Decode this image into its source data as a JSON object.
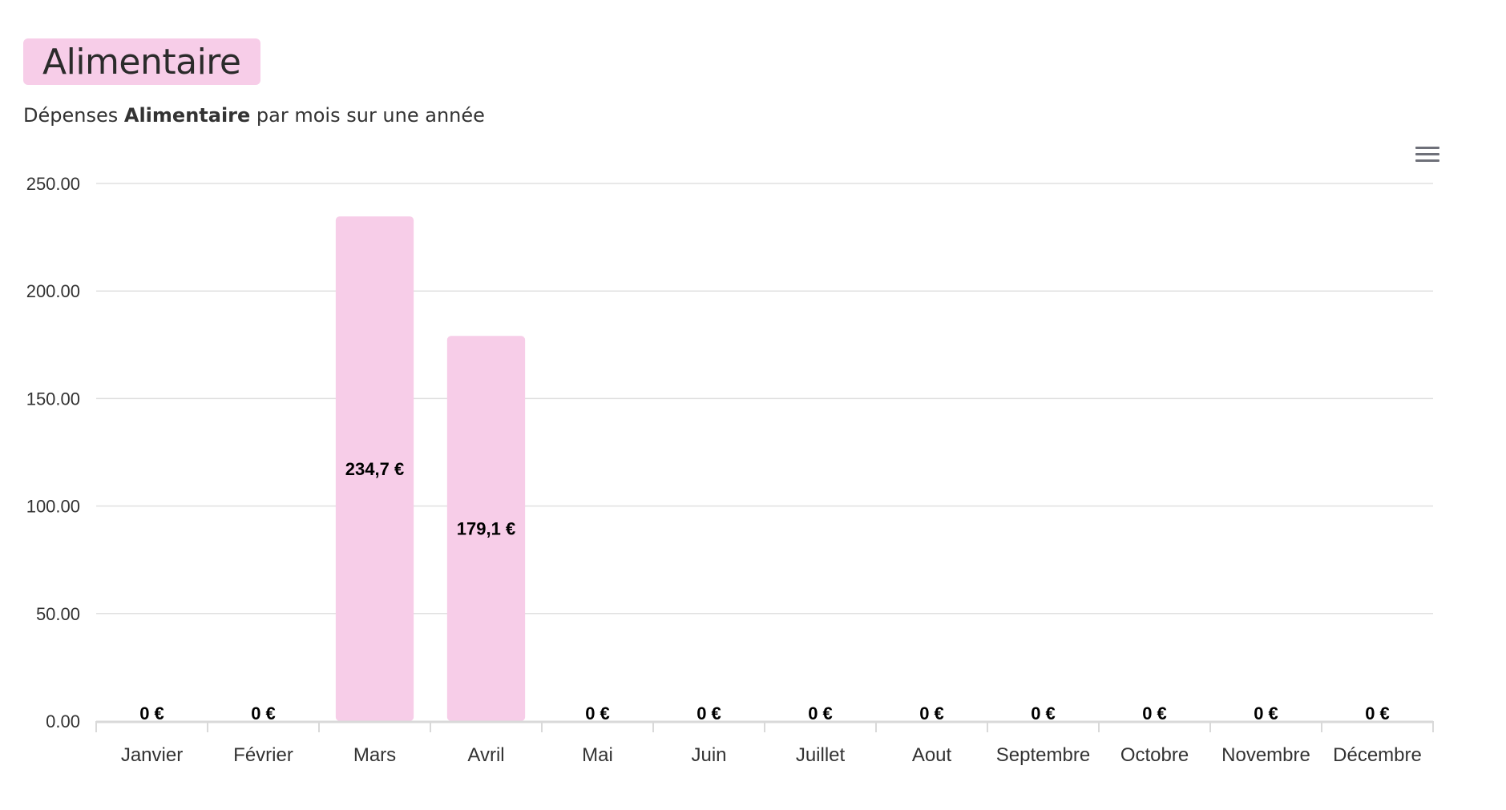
{
  "header": {
    "badge_label": "Alimentaire",
    "badge_color": "#f7cde8",
    "subtitle_before": "Dépenses",
    "subtitle_category": "Alimentaire",
    "subtitle_after": "par mois sur une année"
  },
  "toolbar": {
    "menu_icon": "hamburger-menu-icon"
  },
  "chart_data": {
    "type": "bar",
    "categories": [
      "Janvier",
      "Février",
      "Mars",
      "Avril",
      "Mai",
      "Juin",
      "Juillet",
      "Aout",
      "Septembre",
      "Octobre",
      "Novembre",
      "Décembre"
    ],
    "values": [
      0,
      0,
      234.7,
      179.1,
      0,
      0,
      0,
      0,
      0,
      0,
      0,
      0
    ],
    "data_labels": [
      "0 €",
      "0 €",
      "234,7 €",
      "179,1 €",
      "0 €",
      "0 €",
      "0 €",
      "0 €",
      "0 €",
      "0 €",
      "0 €",
      "0 €"
    ],
    "yticks": [
      "0.00",
      "50.00",
      "100.00",
      "150.00",
      "200.00",
      "250.00"
    ],
    "ylim": [
      0,
      250
    ],
    "grid": true,
    "bar_color": "#f7cde8",
    "grid_color": "#e0e0e0",
    "axis_color": "#d9d9d9"
  }
}
